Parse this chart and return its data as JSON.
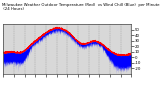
{
  "background_color": "#ffffff",
  "plot_bg_color": "#d8d8d8",
  "temp_color": "#ff0000",
  "wind_chill_color": "#0000ff",
  "y_min": -30,
  "y_max": 60,
  "yticks": [
    -20,
    -10,
    0,
    10,
    20,
    30,
    40,
    50
  ],
  "n_points": 1440,
  "n_grid_lines": 13,
  "title_fontsize": 2.8,
  "tick_fontsize": 2.8,
  "title": "Milwaukee Weather Outdoor Temperature (Red)  vs Wind Chill (Blue)  per Minute  (24 Hours)"
}
